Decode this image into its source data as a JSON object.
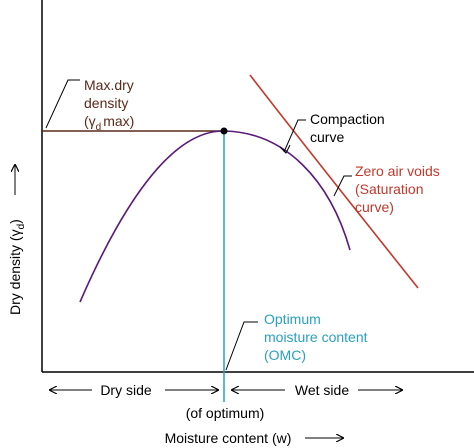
{
  "y_axis": {
    "label_before": "Dry density (γ",
    "label_sub": "d",
    "label_after": ")"
  },
  "x_axis": {
    "label": "Moisture content (w)"
  },
  "max_dry_density": {
    "lines": [
      "Max.dry",
      "density"
    ],
    "line3_before": "(γ",
    "line3_sub": "d",
    "line3_after": "max)"
  },
  "compaction_curve": {
    "lines": [
      "Compaction",
      "curve"
    ]
  },
  "zero_air_voids": {
    "lines": [
      "Zero air voids",
      "(Saturation",
      "curve)"
    ]
  },
  "omc": {
    "lines": [
      "Optimum",
      "moisture content",
      "(OMC)"
    ]
  },
  "sides": {
    "dry": "Dry side",
    "wet": "Wet side",
    "note": "(of optimum)"
  }
}
